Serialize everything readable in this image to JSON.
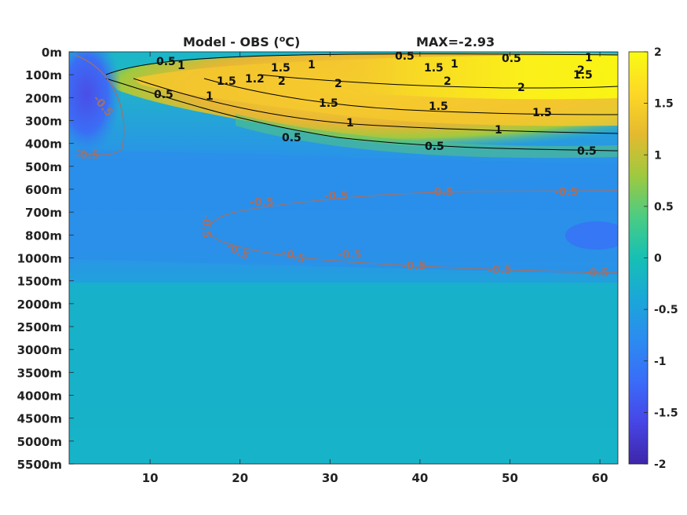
{
  "chart_data": {
    "type": "heatmap",
    "title_left": "Model - OBS (",
    "title_deg": "o",
    "title_unit": "C)",
    "title_right": "MAX=-2.93",
    "xlim": [
      1,
      62
    ],
    "x_ticks": [
      "10",
      "20",
      "30",
      "40",
      "50",
      "60"
    ],
    "x_tick_values": [
      10,
      20,
      30,
      40,
      50,
      60
    ],
    "y_ticks": [
      "0m",
      "100m",
      "200m",
      "300m",
      "400m",
      "500m",
      "600m",
      "700m",
      "800m",
      "1000m",
      "1500m",
      "2000m",
      "2500m",
      "3000m",
      "3500m",
      "4000m",
      "4500m",
      "5000m",
      "5500m"
    ],
    "colorbar": {
      "range": [
        -2,
        2
      ],
      "ticks": [
        "2",
        "1.5",
        "1",
        "0.5",
        "0",
        "-0.5",
        "-1",
        "-1.5",
        "-2"
      ],
      "tick_values": [
        2,
        1.5,
        1,
        0.5,
        0,
        -0.5,
        -1,
        -1.5,
        -2
      ],
      "colormap": [
        "#3e26a8",
        "#4745e5",
        "#3a6cf8",
        "#2c8bf0",
        "#1aa7d8",
        "#16c0b4",
        "#4bcc83",
        "#9fc93f",
        "#e4ba2f",
        "#fdd826",
        "#f9fb14"
      ]
    },
    "contour_labels_positive": [
      "0.5",
      "1",
      "1.5",
      "1",
      "0.5",
      "1.5",
      "1",
      "0.5",
      "0.5",
      "1.5",
      "1.2",
      "2",
      "2",
      "2",
      "1.5",
      "2",
      "2",
      "1",
      "1.5",
      "1.5",
      "1",
      "0.5",
      "0.5",
      "1",
      "1.5",
      "0.5",
      "1",
      "2",
      "2",
      "0.5"
    ],
    "contour_labels_negative": [
      "-0.5",
      "-0.5",
      "-0.5",
      "-0.5",
      "-0.5",
      "-0.5",
      "-0.5",
      "-0.5",
      "-0.5",
      "-0.5",
      "-0.5",
      "-0.5",
      "-0.5"
    ],
    "contour_colors": {
      "positive": "#000000",
      "negative": "#a0716a"
    }
  }
}
